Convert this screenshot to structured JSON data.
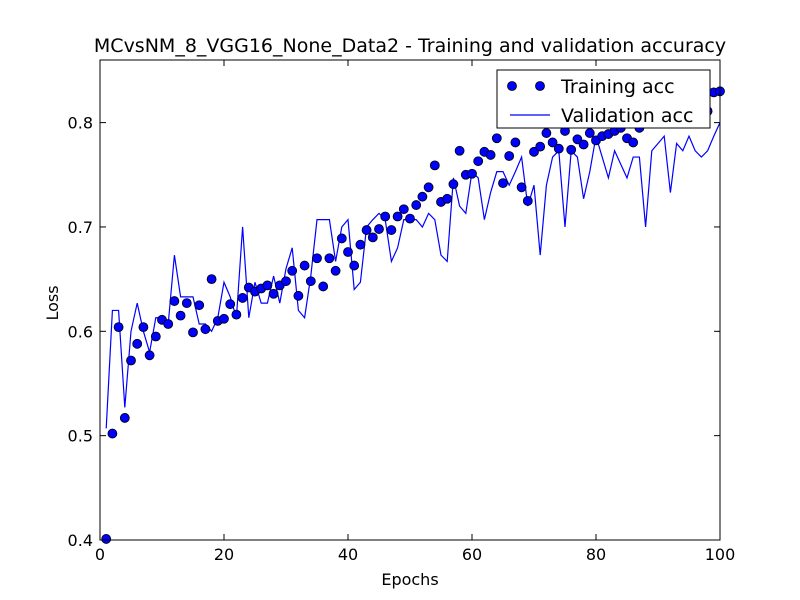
{
  "chart_data": {
    "type": "line",
    "title": "MCvsNM_8_VGG16_None_Data2 - Training and validation accuracy",
    "xlabel": "Epochs",
    "ylabel": "Loss",
    "xlim": [
      0,
      100
    ],
    "ylim": [
      0.4,
      0.86
    ],
    "x_ticks": [
      0,
      20,
      40,
      60,
      80,
      100
    ],
    "y_ticks": [
      0.4,
      0.5,
      0.6,
      0.7,
      0.8
    ],
    "x_tick_labels": [
      "0",
      "20",
      "40",
      "60",
      "80",
      "100"
    ],
    "y_tick_labels": [
      "0.4",
      "0.5",
      "0.6",
      "0.7",
      "0.8"
    ],
    "grid": false,
    "legend": {
      "position": "top-right"
    },
    "colors": {
      "series": "#0000ff",
      "marker_edge": "#000000"
    },
    "series": [
      {
        "name": "Training acc",
        "style": "markers",
        "x": [
          1,
          2,
          3,
          4,
          5,
          6,
          7,
          8,
          9,
          10,
          11,
          12,
          13,
          14,
          15,
          16,
          17,
          18,
          19,
          20,
          21,
          22,
          23,
          24,
          25,
          26,
          27,
          28,
          29,
          30,
          31,
          32,
          33,
          34,
          35,
          36,
          37,
          38,
          39,
          40,
          41,
          42,
          43,
          44,
          45,
          46,
          47,
          48,
          49,
          50,
          51,
          52,
          53,
          54,
          55,
          56,
          57,
          58,
          59,
          60,
          61,
          62,
          63,
          64,
          65,
          66,
          67,
          68,
          69,
          70,
          71,
          72,
          73,
          74,
          75,
          76,
          77,
          78,
          79,
          80,
          81,
          82,
          83,
          84,
          85,
          86,
          87,
          88,
          89,
          90,
          91,
          92,
          93,
          94,
          95,
          96,
          97,
          98,
          99,
          100
        ],
        "values": [
          0.401,
          0.502,
          0.604,
          0.517,
          0.572,
          0.588,
          0.604,
          0.577,
          0.595,
          0.611,
          0.607,
          0.629,
          0.615,
          0.627,
          0.599,
          0.625,
          0.602,
          0.65,
          0.61,
          0.612,
          0.626,
          0.616,
          0.632,
          0.642,
          0.638,
          0.641,
          0.644,
          0.636,
          0.644,
          0.648,
          0.658,
          0.634,
          0.663,
          0.648,
          0.67,
          0.643,
          0.67,
          0.658,
          0.689,
          0.676,
          0.663,
          0.683,
          0.697,
          0.69,
          0.698,
          0.71,
          0.697,
          0.71,
          0.717,
          0.708,
          0.721,
          0.729,
          0.738,
          0.759,
          0.724,
          0.727,
          0.741,
          0.773,
          0.75,
          0.751,
          0.763,
          0.772,
          0.769,
          0.785,
          0.742,
          0.768,
          0.781,
          0.738,
          0.725,
          0.772,
          0.777,
          0.79,
          0.781,
          0.775,
          0.792,
          0.774,
          0.784,
          0.779,
          0.79,
          0.783,
          0.787,
          0.789,
          0.792,
          0.795,
          0.785,
          0.781,
          0.795,
          0.843,
          0.8,
          0.803,
          0.8,
          0.808,
          0.815,
          0.819,
          0.812,
          0.82,
          0.818,
          0.811,
          0.829,
          0.83
        ]
      },
      {
        "name": "Validation acc",
        "style": "line",
        "x": [
          1,
          2,
          3,
          4,
          5,
          6,
          7,
          8,
          9,
          10,
          11,
          12,
          13,
          14,
          15,
          16,
          17,
          18,
          19,
          20,
          21,
          22,
          23,
          24,
          25,
          26,
          27,
          28,
          29,
          30,
          31,
          32,
          33,
          34,
          35,
          36,
          37,
          38,
          39,
          40,
          41,
          42,
          43,
          44,
          45,
          46,
          47,
          48,
          49,
          50,
          51,
          52,
          53,
          54,
          55,
          56,
          57,
          58,
          59,
          60,
          61,
          62,
          63,
          64,
          65,
          66,
          67,
          68,
          69,
          70,
          71,
          72,
          73,
          74,
          75,
          76,
          77,
          78,
          79,
          80,
          81,
          82,
          83,
          84,
          85,
          86,
          87,
          88,
          89,
          90,
          91,
          92,
          93,
          94,
          95,
          96,
          97,
          98,
          99,
          100
        ],
        "values": [
          0.507,
          0.62,
          0.62,
          0.527,
          0.6,
          0.627,
          0.6,
          0.58,
          0.613,
          0.613,
          0.607,
          0.673,
          0.633,
          0.633,
          0.633,
          0.607,
          0.607,
          0.6,
          0.613,
          0.647,
          0.633,
          0.613,
          0.7,
          0.613,
          0.647,
          0.627,
          0.627,
          0.653,
          0.627,
          0.66,
          0.68,
          0.62,
          0.613,
          0.653,
          0.707,
          0.707,
          0.707,
          0.667,
          0.7,
          0.707,
          0.64,
          0.647,
          0.7,
          0.707,
          0.713,
          0.707,
          0.667,
          0.68,
          0.707,
          0.707,
          0.707,
          0.7,
          0.713,
          0.707,
          0.673,
          0.667,
          0.747,
          0.72,
          0.713,
          0.753,
          0.747,
          0.707,
          0.733,
          0.753,
          0.753,
          0.74,
          0.753,
          0.767,
          0.72,
          0.74,
          0.673,
          0.74,
          0.767,
          0.773,
          0.7,
          0.773,
          0.767,
          0.727,
          0.753,
          0.787,
          0.767,
          0.747,
          0.773,
          0.76,
          0.747,
          0.767,
          0.767,
          0.7,
          0.773,
          0.78,
          0.787,
          0.733,
          0.78,
          0.773,
          0.787,
          0.773,
          0.767,
          0.773,
          0.787,
          0.8
        ]
      }
    ]
  }
}
